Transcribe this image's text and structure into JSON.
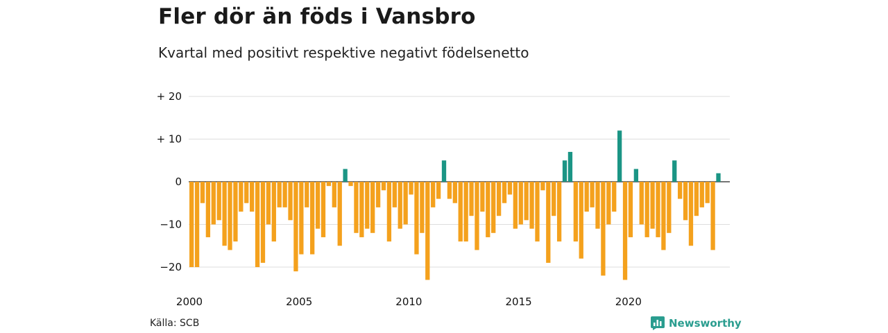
{
  "title": "Fler dör än föds i Vansbro",
  "subtitle": "Kvartal med positivt respektive negativt födelsenetto",
  "source": "Källa: SCB",
  "brand": "Newsworthy",
  "colors": {
    "positive": "#1b9585",
    "negative": "#f4a11d",
    "grid": "#dddddd",
    "zero": "#222222",
    "brand": "#2a9d8f"
  },
  "chart_data": {
    "type": "bar",
    "title": "Fler dör än föds i Vansbro",
    "subtitle": "Kvartal med positivt respektive negativt födelsenetto",
    "x_unit": "quarter",
    "first_quarter": "2000 Q1",
    "ylim": [
      -24,
      20
    ],
    "y_ticks": [
      20,
      10,
      0,
      -10,
      -20
    ],
    "y_tick_labels": [
      "+ 20",
      "+ 10",
      "0",
      "−10",
      "−20"
    ],
    "x_tick_labels": [
      "2000",
      "2005",
      "2010",
      "2015",
      "2020"
    ],
    "grid": true,
    "values": [
      -20,
      -20,
      -5,
      -13,
      -10,
      -9,
      -15,
      -16,
      -14,
      -7,
      -5,
      -7,
      -20,
      -19,
      -10,
      -14,
      -6,
      -6,
      -9,
      -21,
      -17,
      -6,
      -17,
      -11,
      -13,
      -1,
      -6,
      -15,
      3,
      -1,
      -12,
      -13,
      -11,
      -12,
      -6,
      -2,
      -14,
      -6,
      -11,
      -10,
      -3,
      -17,
      -12,
      -23,
      -6,
      -4,
      5,
      -4,
      -5,
      -14,
      -14,
      -8,
      -16,
      -7,
      -13,
      -12,
      -8,
      -5,
      -3,
      -11,
      -10,
      -9,
      -11,
      -14,
      -2,
      -19,
      -8,
      -14,
      5,
      7,
      -14,
      -18,
      -7,
      -6,
      -11,
      -22,
      -10,
      -7,
      12,
      -23,
      -13,
      3,
      -10,
      -13,
      -11,
      -13,
      -16,
      -12,
      5,
      -4,
      -9,
      -15,
      -8,
      -6,
      -5,
      -16,
      2
    ]
  }
}
